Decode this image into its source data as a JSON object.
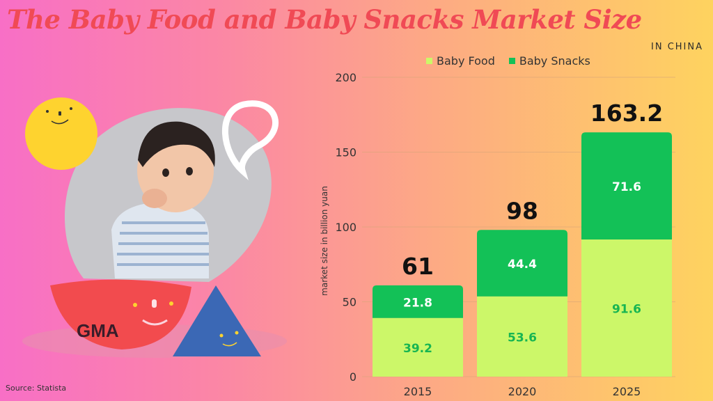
{
  "header": {
    "title": "The Baby Food and Baby Snacks Market Size",
    "subtitle": "IN CHINA"
  },
  "source": "Source: Statista",
  "logo_text": "GMA",
  "colors": {
    "baby_food": "#ccf769",
    "baby_snacks": "#13c157",
    "title": "#f04a55"
  },
  "chart_data": {
    "type": "bar",
    "stacked": true,
    "categories": [
      "2015",
      "2020",
      "2025"
    ],
    "series": [
      {
        "name": "Baby Food",
        "values": [
          39.2,
          53.6,
          91.6
        ],
        "color": "#ccf769",
        "label_color": "#17b552"
      },
      {
        "name": "Baby Snacks",
        "values": [
          21.8,
          44.4,
          71.6
        ],
        "color": "#13c157",
        "label_color": "#ffffff"
      }
    ],
    "totals": [
      "61",
      "98",
      "163.2"
    ],
    "ylabel": "market size in billion yuan",
    "ylim": [
      0,
      200
    ],
    "yticks": [
      0,
      50,
      100,
      150,
      200
    ],
    "grid": true,
    "legend_position": "top"
  }
}
